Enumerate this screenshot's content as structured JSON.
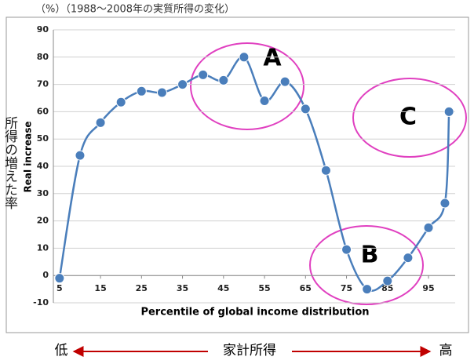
{
  "chart_data": {
    "type": "line",
    "title": "（%）（1988～2008年の実質所得の変化）",
    "ylabel": "Real increase",
    "ylabel_jp": "所得の増えた率",
    "xlabel": "Percentile of global income distribution",
    "x": [
      5,
      10,
      15,
      20,
      25,
      30,
      35,
      40,
      45,
      50,
      55,
      60,
      65,
      70,
      75,
      80,
      85,
      90,
      95,
      99,
      100
    ],
    "series": [
      {
        "name": "Real increase",
        "color": "#4a7ebb",
        "values": [
          -1,
          44,
          56,
          63.5,
          67.5,
          67,
          70,
          73.5,
          71.5,
          80,
          64,
          71,
          61,
          38.5,
          9.5,
          -5,
          -2,
          6.5,
          17.5,
          26.5,
          60
        ]
      }
    ],
    "xlim": [
      3.5,
      101.5
    ],
    "ylim": [
      -10,
      90
    ],
    "xticks": [
      5,
      15,
      25,
      35,
      45,
      55,
      65,
      75,
      85,
      95
    ],
    "yticks": [
      -10,
      0,
      10,
      20,
      30,
      40,
      50,
      60,
      70,
      80,
      90
    ],
    "grid": true,
    "annotations": [
      "A",
      "B",
      "C"
    ],
    "bottom": {
      "low": "低",
      "middle": "家計所得",
      "high": "高"
    }
  }
}
